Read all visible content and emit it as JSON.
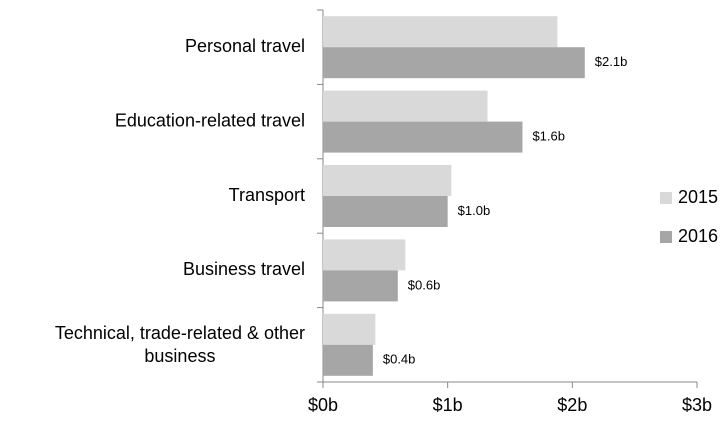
{
  "chart_data": {
    "type": "bar",
    "orientation": "horizontal",
    "categories": [
      "Personal travel",
      "Education-related travel",
      "Transport",
      "Business travel",
      "Technical, trade-related & other business"
    ],
    "series": [
      {
        "name": "2015",
        "color": "#d9d9d9",
        "values": [
          1.88,
          1.32,
          1.03,
          0.66,
          0.42
        ]
      },
      {
        "name": "2016",
        "color": "#a6a6a6",
        "values": [
          2.1,
          1.6,
          1.0,
          0.6,
          0.4
        ],
        "value_labels": [
          "$2.1b",
          "$1.6b",
          "$1.0b",
          "$0.6b",
          "$0.4b"
        ]
      }
    ],
    "xlim": [
      0,
      3
    ],
    "xticks": [
      {
        "value": 0,
        "label": "$0b"
      },
      {
        "value": 1,
        "label": "$1b"
      },
      {
        "value": 2,
        "label": "$2b"
      },
      {
        "value": 3,
        "label": "$3b"
      }
    ],
    "grid": false,
    "legend": "right"
  }
}
